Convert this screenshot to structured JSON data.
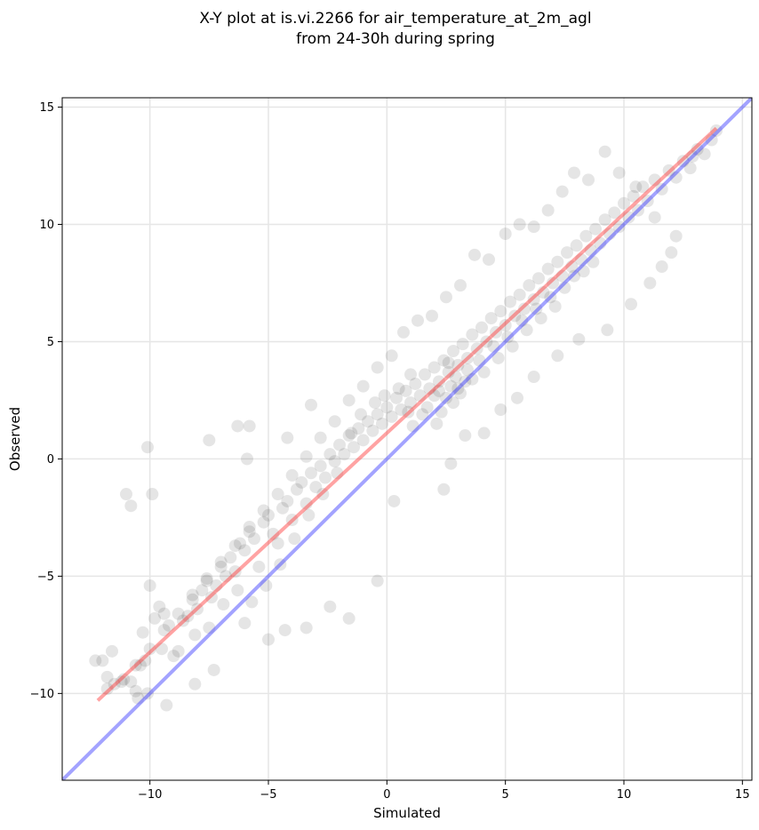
{
  "chart_data": {
    "type": "scatter",
    "title": [
      "X-Y plot at is.vi.2266 for air_temperature_at_2m_agl",
      "from 24-30h during spring"
    ],
    "xlabel": "Simulated",
    "ylabel": "Observed",
    "xlim": [
      -13.7,
      15.4
    ],
    "ylim": [
      -13.7,
      15.4
    ],
    "xticks": [
      -10,
      -5,
      0,
      5,
      10,
      15
    ],
    "yticks": [
      -10,
      -5,
      0,
      5,
      10,
      15
    ],
    "grid": true,
    "point_color": "#000000",
    "point_opacity": 0.1,
    "identity_line": {
      "color": "#3333ff",
      "x": [
        -13.7,
        15.4
      ],
      "y": [
        -13.7,
        15.4
      ]
    },
    "regression_line": {
      "color": "#ff3333",
      "x": [
        -12.2,
        13.9
      ],
      "y": [
        -10.3,
        14.1
      ]
    },
    "points": [
      [
        -12.3,
        -8.6
      ],
      [
        -12.0,
        -8.6
      ],
      [
        -11.8,
        -9.8
      ],
      [
        -11.5,
        -9.6
      ],
      [
        -11.8,
        -9.3
      ],
      [
        -11.6,
        -8.2
      ],
      [
        -11.1,
        -9.4
      ],
      [
        -10.8,
        -9.5
      ],
      [
        -10.6,
        -9.9
      ],
      [
        -10.5,
        -10.2
      ],
      [
        -10.4,
        -8.8
      ],
      [
        -10.2,
        -8.6
      ],
      [
        -10.1,
        -10.0
      ],
      [
        -10.3,
        -7.4
      ],
      [
        -10.0,
        -5.4
      ],
      [
        -9.8,
        -6.8
      ],
      [
        -9.6,
        -6.3
      ],
      [
        -9.4,
        -6.6
      ],
      [
        -9.2,
        -7.1
      ],
      [
        -9.5,
        -8.1
      ],
      [
        -9.0,
        -8.4
      ],
      [
        -8.8,
        -8.2
      ],
      [
        -8.6,
        -6.9
      ],
      [
        -8.4,
        -6.7
      ],
      [
        -8.2,
        -6.0
      ],
      [
        -8.0,
        -6.4
      ],
      [
        -7.8,
        -5.6
      ],
      [
        -7.6,
        -5.2
      ],
      [
        -7.4,
        -5.9
      ],
      [
        -7.2,
        -5.4
      ],
      [
        -7.0,
        -4.6
      ],
      [
        -6.8,
        -5.0
      ],
      [
        -6.6,
        -4.2
      ],
      [
        -6.4,
        -4.8
      ],
      [
        -6.2,
        -3.6
      ],
      [
        -6.0,
        -3.9
      ],
      [
        -5.8,
        -3.1
      ],
      [
        -5.6,
        -3.4
      ],
      [
        -5.4,
        -4.6
      ],
      [
        -5.2,
        -2.7
      ],
      [
        -5.0,
        -2.4
      ],
      [
        -4.8,
        -3.2
      ],
      [
        -4.6,
        -3.6
      ],
      [
        -4.4,
        -2.1
      ],
      [
        -4.2,
        -1.8
      ],
      [
        -4.0,
        -2.6
      ],
      [
        -3.8,
        -1.3
      ],
      [
        -3.6,
        -1.0
      ],
      [
        -3.4,
        -1.9
      ],
      [
        -3.2,
        -0.6
      ],
      [
        -3.0,
        -1.2
      ],
      [
        -2.8,
        -0.3
      ],
      [
        -2.6,
        -0.8
      ],
      [
        -2.4,
        0.2
      ],
      [
        -2.2,
        -0.1
      ],
      [
        -2.0,
        0.6
      ],
      [
        -1.8,
        0.2
      ],
      [
        -1.6,
        1.0
      ],
      [
        -1.4,
        0.5
      ],
      [
        -1.2,
        1.3
      ],
      [
        -1.0,
        0.8
      ],
      [
        -0.8,
        1.6
      ],
      [
        -0.6,
        1.2
      ],
      [
        -0.4,
        1.9
      ],
      [
        -0.2,
        1.5
      ],
      [
        0.0,
        2.2
      ],
      [
        0.2,
        1.8
      ],
      [
        0.4,
        2.6
      ],
      [
        0.6,
        2.1
      ],
      [
        0.8,
        2.9
      ],
      [
        1.0,
        2.4
      ],
      [
        1.2,
        3.2
      ],
      [
        1.4,
        2.7
      ],
      [
        1.6,
        3.6
      ],
      [
        1.8,
        3.0
      ],
      [
        2.0,
        3.9
      ],
      [
        2.2,
        3.3
      ],
      [
        2.4,
        4.2
      ],
      [
        2.6,
        3.7
      ],
      [
        2.8,
        4.6
      ],
      [
        3.0,
        4.0
      ],
      [
        3.2,
        4.9
      ],
      [
        3.4,
        4.3
      ],
      [
        3.6,
        5.3
      ],
      [
        3.8,
        4.7
      ],
      [
        4.0,
        5.6
      ],
      [
        4.2,
        5.0
      ],
      [
        4.4,
        6.0
      ],
      [
        4.6,
        5.4
      ],
      [
        4.8,
        6.3
      ],
      [
        5.0,
        5.7
      ],
      [
        5.2,
        6.7
      ],
      [
        5.4,
        6.1
      ],
      [
        5.6,
        7.0
      ],
      [
        5.8,
        6.4
      ],
      [
        6.0,
        7.4
      ],
      [
        6.2,
        6.8
      ],
      [
        6.4,
        7.7
      ],
      [
        6.6,
        7.1
      ],
      [
        6.8,
        8.1
      ],
      [
        7.0,
        7.5
      ],
      [
        7.2,
        8.4
      ],
      [
        7.4,
        7.8
      ],
      [
        7.6,
        8.8
      ],
      [
        7.8,
        8.2
      ],
      [
        8.0,
        9.1
      ],
      [
        8.2,
        8.5
      ],
      [
        8.4,
        9.5
      ],
      [
        8.6,
        8.9
      ],
      [
        8.8,
        9.8
      ],
      [
        9.0,
        9.2
      ],
      [
        9.2,
        10.2
      ],
      [
        9.4,
        9.6
      ],
      [
        9.6,
        10.5
      ],
      [
        9.8,
        9.9
      ],
      [
        10.0,
        10.9
      ],
      [
        10.2,
        10.3
      ],
      [
        10.4,
        11.2
      ],
      [
        10.6,
        10.6
      ],
      [
        10.8,
        11.6
      ],
      [
        11.0,
        11.0
      ],
      [
        11.3,
        11.9
      ],
      [
        11.6,
        11.5
      ],
      [
        11.9,
        12.3
      ],
      [
        12.2,
        12.0
      ],
      [
        12.5,
        12.7
      ],
      [
        12.8,
        12.4
      ],
      [
        13.1,
        13.2
      ],
      [
        13.4,
        13.0
      ],
      [
        13.7,
        13.6
      ],
      [
        13.9,
        14.0
      ],
      [
        -11.0,
        -1.5
      ],
      [
        -10.8,
        -2.0
      ],
      [
        -10.1,
        0.5
      ],
      [
        -9.9,
        -1.5
      ],
      [
        -7.5,
        0.8
      ],
      [
        -6.3,
        1.4
      ],
      [
        -5.8,
        1.4
      ],
      [
        -5.9,
        0.0
      ],
      [
        -4.2,
        0.9
      ],
      [
        -3.2,
        2.3
      ],
      [
        -9.3,
        -10.5
      ],
      [
        -8.1,
        -9.6
      ],
      [
        -7.3,
        -9.0
      ],
      [
        -6.0,
        -7.0
      ],
      [
        -5.0,
        -7.7
      ],
      [
        -4.3,
        -7.3
      ],
      [
        -3.4,
        -7.2
      ],
      [
        -2.4,
        -6.3
      ],
      [
        -1.6,
        -6.8
      ],
      [
        -0.4,
        -5.2
      ],
      [
        0.3,
        -1.8
      ],
      [
        2.4,
        -1.3
      ],
      [
        2.7,
        -0.2
      ],
      [
        3.3,
        1.0
      ],
      [
        4.1,
        1.1
      ],
      [
        4.8,
        2.1
      ],
      [
        5.5,
        2.6
      ],
      [
        6.2,
        3.5
      ],
      [
        7.2,
        4.4
      ],
      [
        8.1,
        5.1
      ],
      [
        9.3,
        5.5
      ],
      [
        10.3,
        6.6
      ],
      [
        11.1,
        7.5
      ],
      [
        11.6,
        8.2
      ],
      [
        12.0,
        8.8
      ],
      [
        12.2,
        9.5
      ],
      [
        12.9,
        12.9
      ],
      [
        11.3,
        10.3
      ],
      [
        10.5,
        11.6
      ],
      [
        9.8,
        12.2
      ],
      [
        9.2,
        13.1
      ],
      [
        8.5,
        11.9
      ],
      [
        7.9,
        12.2
      ],
      [
        7.4,
        11.4
      ],
      [
        6.8,
        10.6
      ],
      [
        6.2,
        9.9
      ],
      [
        5.6,
        10.0
      ],
      [
        5.0,
        9.6
      ],
      [
        4.3,
        8.5
      ],
      [
        3.7,
        8.7
      ],
      [
        3.1,
        7.4
      ],
      [
        2.5,
        6.9
      ],
      [
        1.9,
        6.1
      ],
      [
        1.3,
        5.9
      ],
      [
        0.7,
        5.4
      ],
      [
        0.2,
        4.4
      ],
      [
        -0.4,
        3.9
      ],
      [
        -1.0,
        3.1
      ],
      [
        -1.6,
        2.5
      ],
      [
        -2.2,
        1.6
      ],
      [
        -2.8,
        0.9
      ],
      [
        -3.4,
        0.1
      ],
      [
        -4.0,
        -0.7
      ],
      [
        -4.6,
        -1.5
      ],
      [
        -5.2,
        -2.2
      ],
      [
        -5.8,
        -2.9
      ],
      [
        -6.4,
        -3.7
      ],
      [
        -7.0,
        -4.4
      ],
      [
        -7.6,
        -5.1
      ],
      [
        -8.2,
        -5.8
      ],
      [
        -8.8,
        -6.6
      ],
      [
        -9.4,
        -7.3
      ],
      [
        -10.0,
        -8.1
      ],
      [
        -10.6,
        -8.8
      ],
      [
        -11.2,
        -9.5
      ],
      [
        2.1,
        1.5
      ],
      [
        2.3,
        2.0
      ],
      [
        2.5,
        2.6
      ],
      [
        2.7,
        3.1
      ],
      [
        2.9,
        3.5
      ],
      [
        3.1,
        2.8
      ],
      [
        3.3,
        3.3
      ],
      [
        2.0,
        2.7
      ],
      [
        1.7,
        2.2
      ],
      [
        2.6,
        4.1
      ],
      [
        3.4,
        3.8
      ],
      [
        3.0,
        3.0
      ],
      [
        2.8,
        2.4
      ],
      [
        2.2,
        2.9
      ],
      [
        1.5,
        1.9
      ],
      [
        1.1,
        1.4
      ],
      [
        0.9,
        2.0
      ],
      [
        3.6,
        3.4
      ],
      [
        3.9,
        4.2
      ],
      [
        4.1,
        3.7
      ],
      [
        4.5,
        4.8
      ],
      [
        4.7,
        4.3
      ],
      [
        5.1,
        5.2
      ],
      [
        5.3,
        4.8
      ],
      [
        5.7,
        5.9
      ],
      [
        5.9,
        5.5
      ],
      [
        6.3,
        6.4
      ],
      [
        6.5,
        6.0
      ],
      [
        6.9,
        6.9
      ],
      [
        7.1,
        6.5
      ],
      [
        7.5,
        7.3
      ],
      [
        7.9,
        7.8
      ],
      [
        8.3,
        8.0
      ],
      [
        8.7,
        8.4
      ],
      [
        1.0,
        3.6
      ],
      [
        0.5,
        3.0
      ],
      [
        -0.1,
        2.7
      ],
      [
        -0.5,
        2.4
      ],
      [
        -1.1,
        1.9
      ],
      [
        -1.5,
        1.1
      ],
      [
        -2.1,
        -0.6
      ],
      [
        -2.7,
        -1.5
      ],
      [
        -3.3,
        -2.4
      ],
      [
        -3.9,
        -3.4
      ],
      [
        -4.5,
        -4.5
      ],
      [
        -5.1,
        -5.4
      ],
      [
        -5.7,
        -6.1
      ],
      [
        -6.3,
        -5.6
      ],
      [
        -6.9,
        -6.2
      ],
      [
        -7.5,
        -7.2
      ],
      [
        -8.1,
        -7.5
      ]
    ]
  }
}
